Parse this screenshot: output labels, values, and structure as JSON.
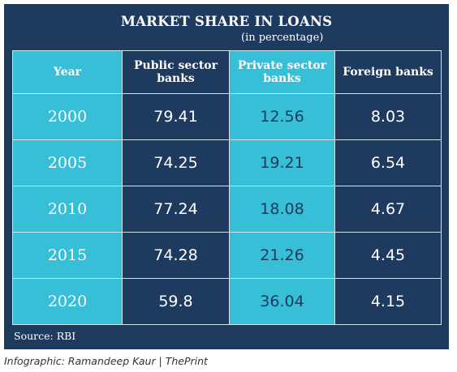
{
  "title": "MARKET SHARE IN LOANS",
  "subtitle": "(in percentage)",
  "source": "Source: RBI",
  "credit": "Infographic: Ramandeep Kaur | ThePrint",
  "colors": {
    "panel": "#1e3a5f",
    "highlight": "#36bfd6",
    "border": "#cfe3ea"
  },
  "chart_data": {
    "type": "table",
    "title": "MARKET SHARE IN LOANS",
    "subtitle": "(in percentage)",
    "columns": [
      "Year",
      "Public sector banks",
      "Private sector banks",
      "Foreign banks"
    ],
    "header_lines": [
      [
        "Year"
      ],
      [
        "Public sector",
        "banks"
      ],
      [
        "Private sector",
        "banks"
      ],
      [
        "Foreign banks"
      ]
    ],
    "rows": [
      [
        "2000",
        "79.41",
        "12.56",
        "8.03"
      ],
      [
        "2005",
        "74.25",
        "19.21",
        "6.54"
      ],
      [
        "2010",
        "77.24",
        "18.08",
        "4.67"
      ],
      [
        "2015",
        "74.28",
        "21.26",
        "4.45"
      ],
      [
        "2020",
        "59.8",
        "36.04",
        "4.15"
      ]
    ]
  }
}
